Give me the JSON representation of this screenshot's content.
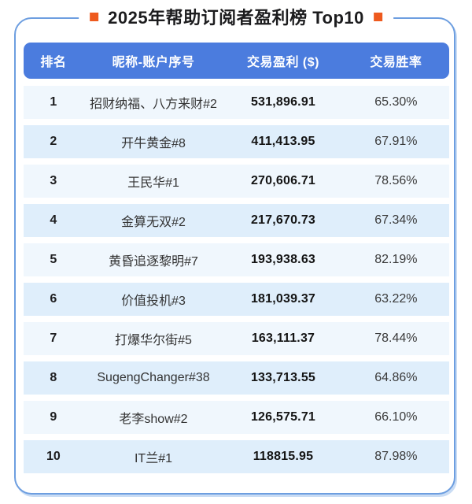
{
  "title": {
    "text": "2025年帮助订阅者盈利榜 Top10",
    "bullet_icon": "orange-square-icon"
  },
  "colors": {
    "header_bg": "#4b7cde",
    "header_text": "#ffffff",
    "row_odd_bg": "#f0f7fd",
    "row_even_bg": "#dfeefb",
    "card_border": "#6d9ee0",
    "title_bullet": "#ee5a1e",
    "text_dark": "#1d1d1f"
  },
  "table": {
    "headers": [
      "排名",
      "昵称-账户序号",
      "交易盈利 ($)",
      "交易胜率"
    ],
    "rows": [
      {
        "rank": "1",
        "nickname": "招财纳福、八方来财#2",
        "profit": "531,896.91",
        "win_rate": "65.30%"
      },
      {
        "rank": "2",
        "nickname": "开牛黄金#8",
        "profit": "411,413.95",
        "win_rate": "67.91%"
      },
      {
        "rank": "3",
        "nickname": "王民华#1",
        "profit": "270,606.71",
        "win_rate": "78.56%"
      },
      {
        "rank": "4",
        "nickname": "金算无双#2",
        "profit": "217,670.73",
        "win_rate": "67.34%"
      },
      {
        "rank": "5",
        "nickname": "黄昏追逐黎明#7",
        "profit": "193,938.63",
        "win_rate": "82.19%"
      },
      {
        "rank": "6",
        "nickname": "价值投机#3",
        "profit": "181,039.37",
        "win_rate": "63.22%"
      },
      {
        "rank": "7",
        "nickname": "打爆华尔街#5",
        "profit": "163,111.37",
        "win_rate": "78.44%"
      },
      {
        "rank": "8",
        "nickname": "SugengChanger#38",
        "profit": "133,713.55",
        "win_rate": "64.86%"
      },
      {
        "rank": "9",
        "nickname": "老李show#2",
        "profit": "126,575.71",
        "win_rate": "66.10%"
      },
      {
        "rank": "10",
        "nickname": "IT兰#1",
        "profit": "118815.95",
        "win_rate": "87.98%"
      }
    ]
  },
  "chart_data": {
    "type": "table",
    "title": "2025年帮助订阅者盈利榜 Top10",
    "columns": [
      "排名",
      "昵称-账户序号",
      "交易盈利 ($)",
      "交易胜率"
    ],
    "rows": [
      [
        1,
        "招财纳福、八方来财#2",
        531896.91,
        65.3
      ],
      [
        2,
        "开牛黄金#8",
        411413.95,
        67.91
      ],
      [
        3,
        "王民华#1",
        270606.71,
        78.56
      ],
      [
        4,
        "金算无双#2",
        217670.73,
        67.34
      ],
      [
        5,
        "黄昏追逐黎明#7",
        193938.63,
        82.19
      ],
      [
        6,
        "价值投机#3",
        181039.37,
        63.22
      ],
      [
        7,
        "打爆华尔街#5",
        163111.37,
        78.44
      ],
      [
        8,
        "SugengChanger#38",
        133713.55,
        64.86
      ],
      [
        9,
        "老李show#2",
        126575.71,
        66.1
      ],
      [
        10,
        "IT兰#1",
        118815.95,
        87.98
      ]
    ],
    "win_rate_unit": "%"
  }
}
